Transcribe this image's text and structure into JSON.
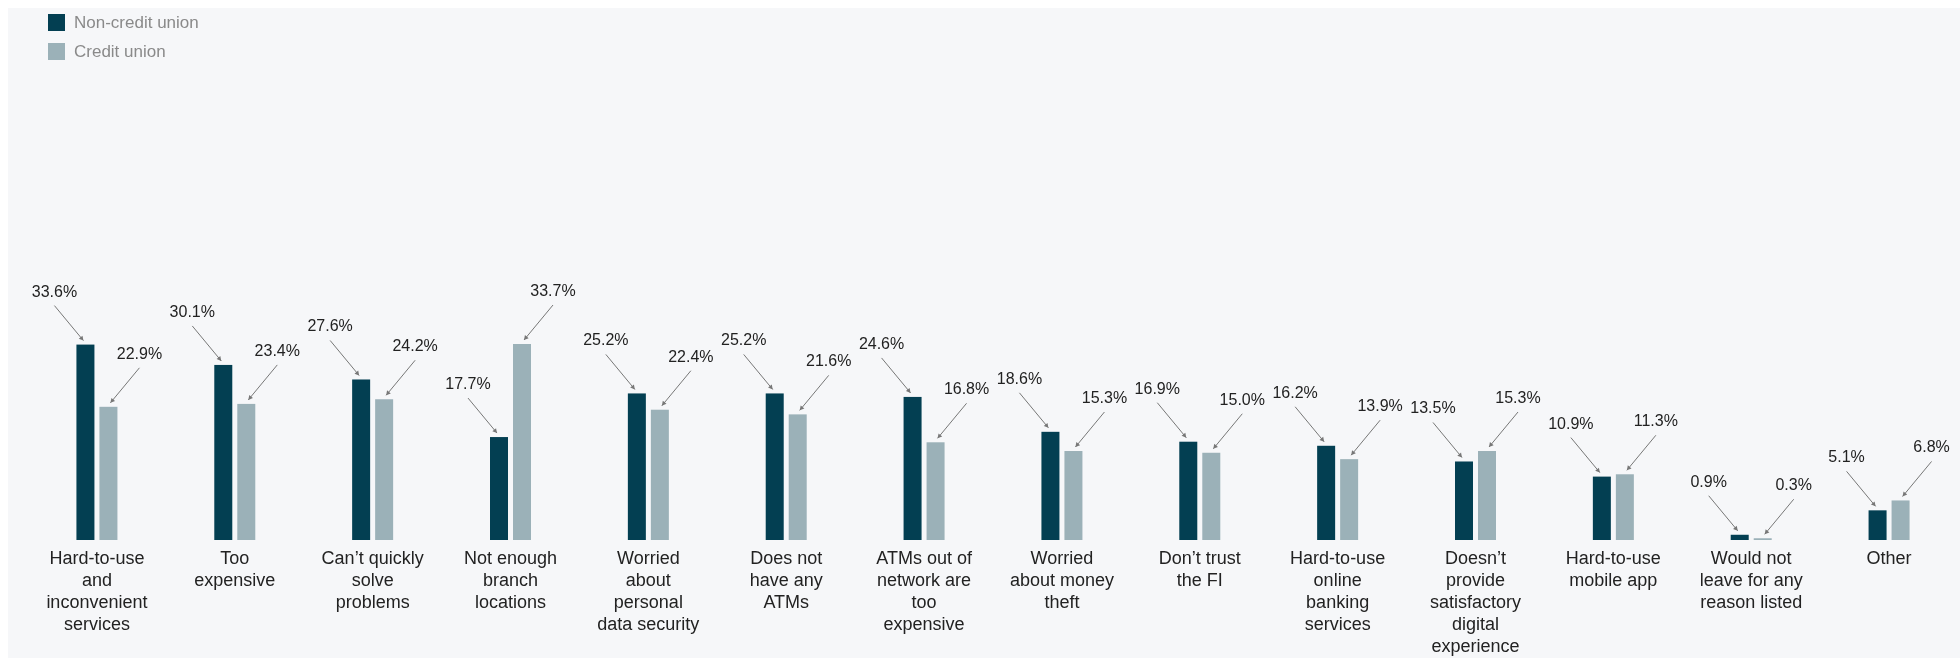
{
  "chart_data": {
    "type": "bar",
    "categories": [
      "Hard-to-use and inconvenient services",
      "Too expensive",
      "Can’t quickly solve problems",
      "Not enough branch locations",
      "Worried about personal data security",
      "Does not have any ATMs",
      "ATMs out of network are too expensive",
      "Worried about money theft",
      "Don’t trust the FI",
      "Hard-to-use online banking services",
      "Doesn’t provide satisfactory digital experience",
      "Hard-to-use mobile app",
      "Would not leave for any reason listed",
      "Other"
    ],
    "series": [
      {
        "name": "Non-credit union",
        "color": "#033f52",
        "values": [
          33.6,
          30.1,
          27.6,
          17.7,
          25.2,
          25.2,
          24.6,
          18.6,
          16.9,
          16.2,
          13.5,
          10.9,
          0.9,
          5.1
        ],
        "value_labels": [
          "33.6%",
          "30.1%",
          "27.6%",
          "17.7%",
          "25.2%",
          "25.2%",
          "24.6%",
          "18.6%",
          "16.9%",
          "16.2%",
          "13.5%",
          "10.9%",
          "0.9%",
          "5.1%"
        ]
      },
      {
        "name": "Credit union",
        "color": "#9bb1b8",
        "values": [
          22.9,
          23.4,
          24.2,
          33.7,
          22.4,
          21.6,
          16.8,
          15.3,
          15.0,
          13.9,
          15.3,
          11.3,
          0.3,
          6.8
        ],
        "value_labels": [
          "22.9%",
          "23.4%",
          "24.2%",
          "33.7%",
          "22.4%",
          "21.6%",
          "16.8%",
          "15.3%",
          "15.0%",
          "13.9%",
          "15.3%",
          "11.3%",
          "0.3%",
          "6.8%"
        ]
      }
    ],
    "relative": false,
    "legend": "top left"
  }
}
